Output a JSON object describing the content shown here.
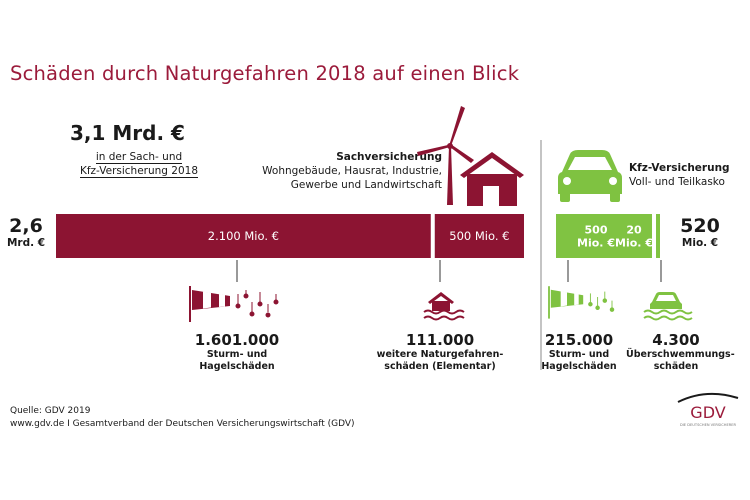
{
  "title": "Schäden durch Naturgefahren 2018 auf einen Blick",
  "total": {
    "value": "3,1 Mrd. €",
    "label_line1": "in der Sach- und",
    "label_line2": "Kfz-Versicherung 2018"
  },
  "sach": {
    "heading": "Sachversicherung",
    "desc_line1": "Wohngebäude, Hausrat, Industrie,",
    "desc_line2": "Gewerbe und Landwirtschaft",
    "total_value": "2,6",
    "total_unit": "Mrd. €"
  },
  "kfz": {
    "heading": "Kfz-Versicherung",
    "desc": "Voll- und Teilkasko",
    "total_value": "520",
    "total_unit": "Mio. €"
  },
  "colors": {
    "title": "#9b1b3b",
    "sach_bar": "#8c1432",
    "kfz_bar": "#80c342",
    "kfz_icon": "#7fc241",
    "gdv_logo": "#9b1b3b"
  },
  "chart_data": {
    "type": "bar",
    "series": [
      {
        "name": "Sachversicherung",
        "unit": "Mio. €",
        "segments": [
          {
            "label": "2.100 Mio. €",
            "value": 2100,
            "count": "1.601.000",
            "count_label": [
              "Sturm- und",
              "Hagelschäden"
            ],
            "icon": "windsock-hail-icon"
          },
          {
            "label": "500 Mio. €",
            "value": 500,
            "count": "111.000",
            "count_label": [
              "weitere Naturgefahren-",
              "schäden (Elementar)"
            ],
            "icon": "flooded-house-icon"
          }
        ]
      },
      {
        "name": "Kfz-Versicherung",
        "unit": "Mio. €",
        "segments": [
          {
            "label": [
              "500",
              "Mio. €"
            ],
            "value": 500,
            "count": "215.000",
            "count_label": [
              "Sturm- und",
              "Hagelschäden"
            ],
            "icon": "windsock-hail-icon"
          },
          {
            "label": [
              "20",
              "Mio. €"
            ],
            "value": 20,
            "count": "4.300",
            "count_label": [
              "Überschwemmungs-",
              "schäden"
            ],
            "icon": "flooded-car-icon"
          }
        ]
      }
    ]
  },
  "source": {
    "line1": "Quelle: GDV 2019",
    "line2": "www.gdv.de I Gesamtverband der Deutschen Versicherungswirtschaft (GDV)"
  },
  "logo": {
    "text": "GDV",
    "tagline": "DIE DEUTSCHEN VERSICHERER"
  }
}
